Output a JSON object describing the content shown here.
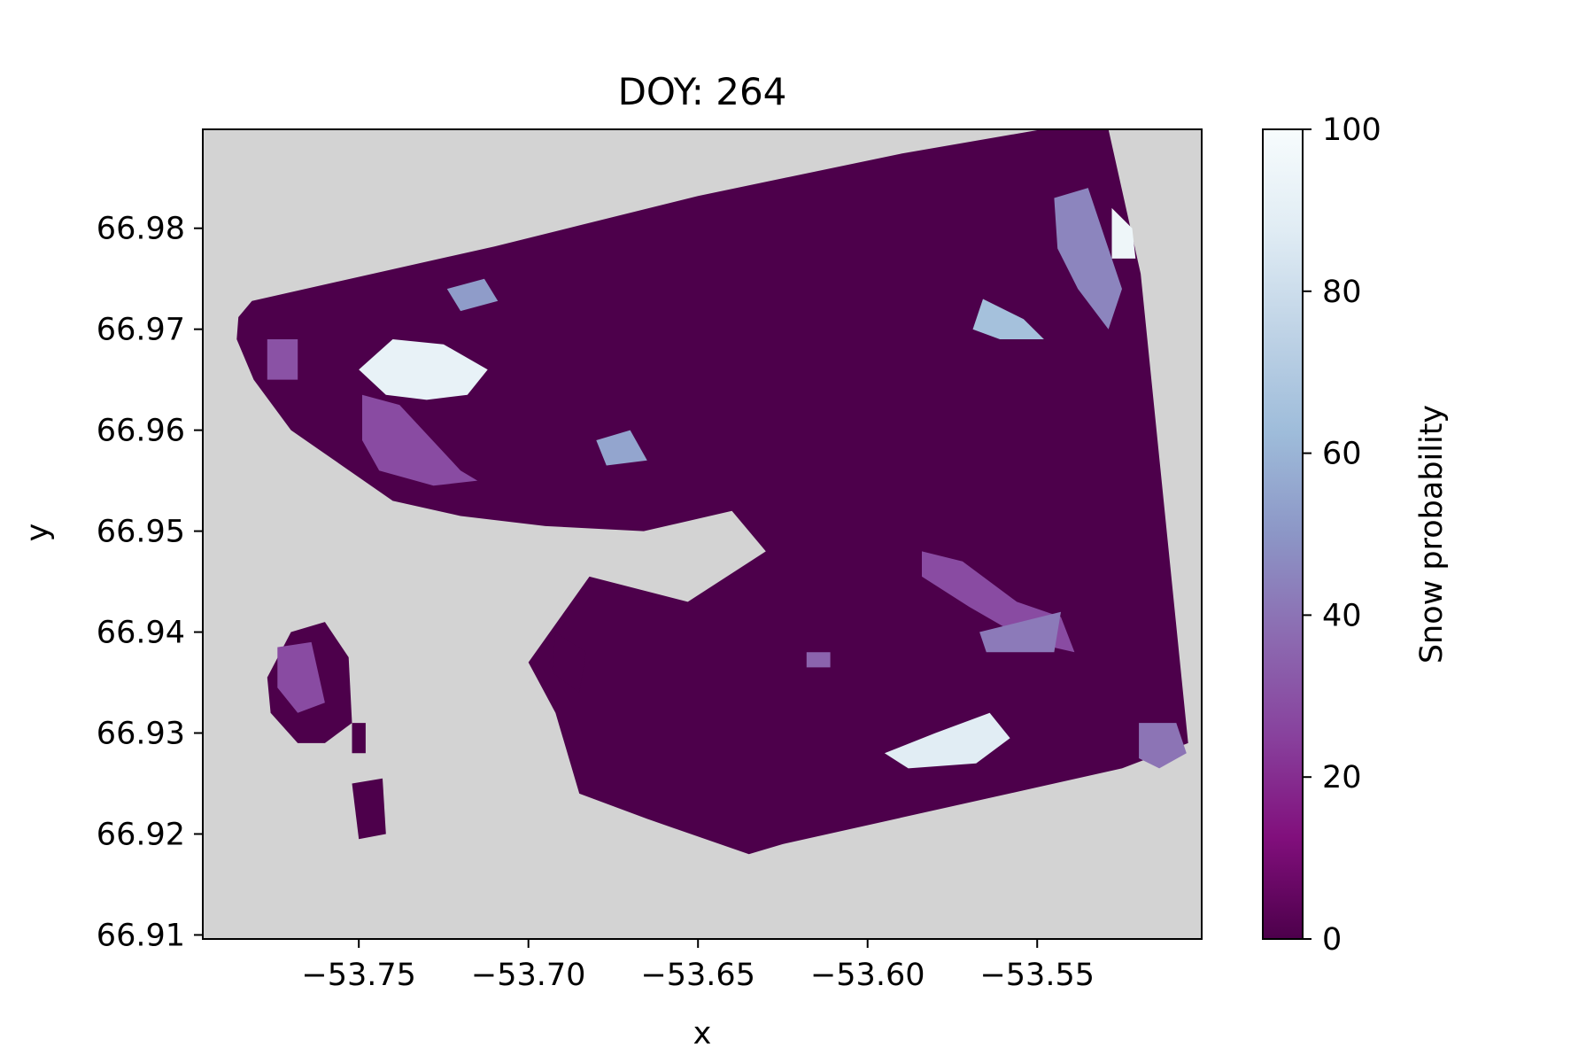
{
  "chart_data": {
    "type": "heatmap",
    "title": "DOY: 264",
    "xlabel": "x",
    "ylabel": "y",
    "xlim": [
      -53.796,
      -53.5015
    ],
    "ylim": [
      66.9096,
      66.9898
    ],
    "xticks": [
      {
        "value": -53.75,
        "label": "−53.75"
      },
      {
        "value": -53.7,
        "label": "−53.70"
      },
      {
        "value": -53.65,
        "label": "−53.65"
      },
      {
        "value": -53.6,
        "label": "−53.60"
      },
      {
        "value": -53.55,
        "label": "−53.55"
      }
    ],
    "yticks": [
      {
        "value": 66.98,
        "label": "66.98"
      },
      {
        "value": 66.97,
        "label": "66.97"
      },
      {
        "value": 66.96,
        "label": "66.96"
      },
      {
        "value": 66.95,
        "label": "66.95"
      },
      {
        "value": 66.94,
        "label": "66.94"
      },
      {
        "value": 66.93,
        "label": "66.93"
      },
      {
        "value": 66.92,
        "label": "66.92"
      },
      {
        "value": 66.91,
        "label": "66.91"
      }
    ],
    "background_color": "#d3d3d3",
    "colorbar": {
      "label": "Snow probability",
      "min": 0,
      "max": 100,
      "colormap": "BuPu_r",
      "ticks": [
        {
          "value": 0,
          "label": "0"
        },
        {
          "value": 20,
          "label": "20"
        },
        {
          "value": 40,
          "label": "40"
        },
        {
          "value": 60,
          "label": "60"
        },
        {
          "value": 80,
          "label": "80"
        },
        {
          "value": 100,
          "label": "100"
        }
      ],
      "stops": [
        "#4d004b",
        "#810f7c",
        "#88419d",
        "#8c6bb1",
        "#8c96c6",
        "#9ebcda",
        "#bfd3e6",
        "#e0ecf4",
        "#f7fcfd"
      ]
    },
    "base_value": 0,
    "footprint": [
      [
        -53.7855,
        66.9712
      ],
      [
        -53.7815,
        66.9728
      ],
      [
        -53.71,
        66.9782
      ],
      [
        -53.65,
        66.9832
      ],
      [
        -53.59,
        66.9874
      ],
      [
        -53.5485,
        66.9898
      ],
      [
        -53.529,
        66.9898
      ],
      [
        -53.5195,
        66.9755
      ],
      [
        -53.5055,
        66.929
      ],
      [
        -53.525,
        66.9265
      ],
      [
        -53.625,
        66.919
      ],
      [
        -53.635,
        66.918
      ],
      [
        -53.665,
        66.9215
      ],
      [
        -53.685,
        66.924
      ],
      [
        -53.692,
        66.932
      ],
      [
        -53.7,
        66.937
      ],
      [
        -53.682,
        66.9455
      ],
      [
        -53.653,
        66.943
      ],
      [
        -53.63,
        66.948
      ],
      [
        -53.64,
        66.952
      ],
      [
        -53.666,
        66.95
      ],
      [
        -53.695,
        66.9505
      ],
      [
        -53.72,
        66.9515
      ],
      [
        -53.74,
        66.953
      ],
      [
        -53.77,
        66.96
      ],
      [
        -53.781,
        66.965
      ],
      [
        -53.786,
        66.969
      ]
    ],
    "islands": [
      {
        "value": 0,
        "polygon": [
          [
            -53.777,
            66.9355
          ],
          [
            -53.77,
            66.94
          ],
          [
            -53.76,
            66.941
          ],
          [
            -53.753,
            66.9375
          ],
          [
            -53.752,
            66.931
          ],
          [
            -53.76,
            66.929
          ],
          [
            -53.768,
            66.929
          ],
          [
            -53.776,
            66.932
          ]
        ]
      },
      {
        "value": 0,
        "polygon": [
          [
            -53.752,
            66.925
          ],
          [
            -53.743,
            66.9255
          ],
          [
            -53.742,
            66.92
          ],
          [
            -53.75,
            66.9195
          ]
        ]
      },
      {
        "value": 0,
        "polygon": [
          [
            -53.752,
            66.931
          ],
          [
            -53.748,
            66.931
          ],
          [
            -53.748,
            66.928
          ],
          [
            -53.752,
            66.928
          ]
        ]
      },
      {
        "value": 0,
        "polygon": [
          [
            -53.692,
            66.94
          ],
          [
            -53.683,
            66.938
          ],
          [
            -53.685,
            66.934
          ],
          [
            -53.693,
            66.936
          ]
        ]
      }
    ],
    "patches": [
      {
        "value": 30,
        "polygon": [
          [
            -53.777,
            66.969
          ],
          [
            -53.768,
            66.969
          ],
          [
            -53.768,
            66.965
          ],
          [
            -53.777,
            66.965
          ]
        ]
      },
      {
        "value": 28,
        "polygon": [
          [
            -53.749,
            66.9635
          ],
          [
            -53.738,
            66.9625
          ],
          [
            -53.72,
            66.956
          ],
          [
            -53.715,
            66.955
          ],
          [
            -53.728,
            66.9545
          ],
          [
            -53.744,
            66.956
          ],
          [
            -53.749,
            66.959
          ]
        ]
      },
      {
        "value": 92,
        "polygon": [
          [
            -53.75,
            66.966
          ],
          [
            -53.74,
            66.969
          ],
          [
            -53.725,
            66.9685
          ],
          [
            -53.712,
            66.966
          ],
          [
            -53.718,
            66.9635
          ],
          [
            -53.73,
            66.963
          ],
          [
            -53.742,
            66.9635
          ]
        ]
      },
      {
        "value": 52,
        "polygon": [
          [
            -53.724,
            66.974
          ],
          [
            -53.713,
            66.975
          ],
          [
            -53.709,
            66.9728
          ],
          [
            -53.72,
            66.9718
          ]
        ]
      },
      {
        "value": 55,
        "polygon": [
          [
            -53.68,
            66.959
          ],
          [
            -53.67,
            66.96
          ],
          [
            -53.665,
            66.957
          ],
          [
            -53.677,
            66.9565
          ]
        ]
      },
      {
        "value": 45,
        "polygon": [
          [
            -53.545,
            66.983
          ],
          [
            -53.535,
            66.984
          ],
          [
            -53.53,
            66.979
          ],
          [
            -53.525,
            66.974
          ],
          [
            -53.529,
            66.97
          ],
          [
            -53.538,
            66.974
          ],
          [
            -53.544,
            66.978
          ]
        ]
      },
      {
        "value": 95,
        "polygon": [
          [
            -53.528,
            66.982
          ],
          [
            -53.522,
            66.98
          ],
          [
            -53.521,
            66.977
          ],
          [
            -53.528,
            66.977
          ]
        ]
      },
      {
        "value": 65,
        "polygon": [
          [
            -53.566,
            66.973
          ],
          [
            -53.554,
            66.971
          ],
          [
            -53.548,
            66.969
          ],
          [
            -53.561,
            66.969
          ],
          [
            -53.569,
            66.97
          ]
        ]
      },
      {
        "value": 28,
        "polygon": [
          [
            -53.584,
            66.948
          ],
          [
            -53.572,
            66.947
          ],
          [
            -53.556,
            66.943
          ],
          [
            -53.543,
            66.9415
          ],
          [
            -53.539,
            66.938
          ],
          [
            -53.552,
            66.939
          ],
          [
            -53.57,
            66.9425
          ],
          [
            -53.584,
            66.9455
          ]
        ]
      },
      {
        "value": 42,
        "polygon": [
          [
            -53.567,
            66.94
          ],
          [
            -53.555,
            66.941
          ],
          [
            -53.543,
            66.942
          ],
          [
            -53.545,
            66.938
          ],
          [
            -53.565,
            66.938
          ]
        ]
      },
      {
        "value": 35,
        "polygon": [
          [
            -53.618,
            66.938
          ],
          [
            -53.611,
            66.938
          ],
          [
            -53.611,
            66.9365
          ],
          [
            -53.618,
            66.9365
          ]
        ]
      },
      {
        "value": 88,
        "polygon": [
          [
            -53.595,
            66.928
          ],
          [
            -53.58,
            66.93
          ],
          [
            -53.564,
            66.932
          ],
          [
            -53.558,
            66.9295
          ],
          [
            -53.568,
            66.927
          ],
          [
            -53.588,
            66.9265
          ]
        ]
      },
      {
        "value": 40,
        "polygon": [
          [
            -53.52,
            66.931
          ],
          [
            -53.509,
            66.931
          ],
          [
            -53.506,
            66.928
          ],
          [
            -53.514,
            66.9265
          ],
          [
            -53.52,
            66.9275
          ]
        ]
      },
      {
        "value": 28,
        "polygon": [
          [
            -53.774,
            66.9385
          ],
          [
            -53.764,
            66.939
          ],
          [
            -53.76,
            66.933
          ],
          [
            -53.768,
            66.932
          ],
          [
            -53.774,
            66.9345
          ]
        ]
      }
    ]
  }
}
